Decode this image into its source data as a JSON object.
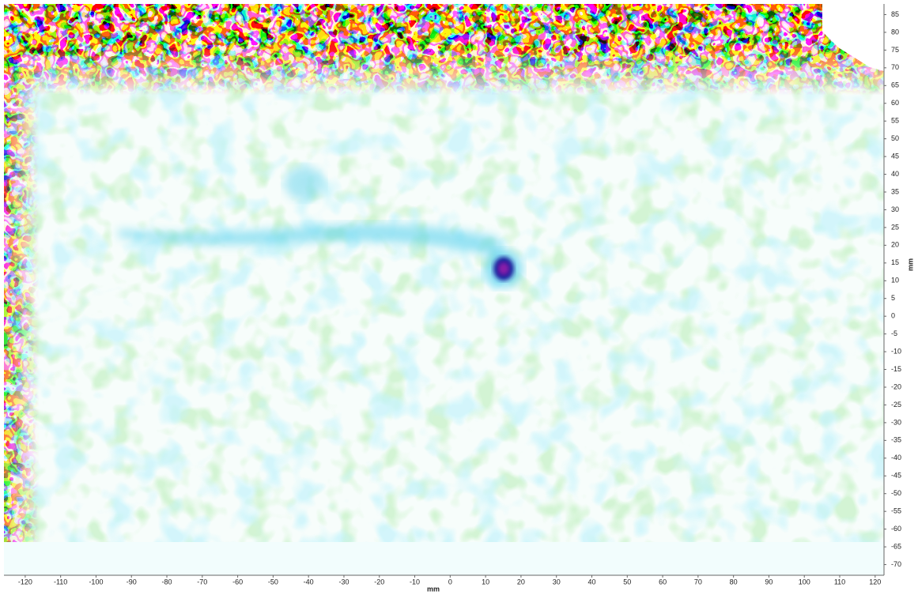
{
  "chart_data": {
    "type": "heatmap",
    "x_label": "mm",
    "y_label": "mm",
    "xlim": [
      -126,
      122.5
    ],
    "ylim": [
      -73,
      88
    ],
    "xticks": [
      -120,
      -110,
      -100,
      -90,
      -80,
      -70,
      -60,
      -50,
      -40,
      -30,
      -20,
      -10,
      0,
      10,
      20,
      30,
      40,
      50,
      60,
      70,
      80,
      90,
      100,
      110,
      120
    ],
    "yticks": [
      -70,
      -65,
      -60,
      -55,
      -50,
      -45,
      -40,
      -35,
      -30,
      -25,
      -20,
      -15,
      -10,
      -5,
      0,
      5,
      10,
      15,
      20,
      25,
      30,
      35,
      40,
      45,
      50,
      55,
      60,
      65,
      70,
      75,
      80,
      85
    ]
  }
}
